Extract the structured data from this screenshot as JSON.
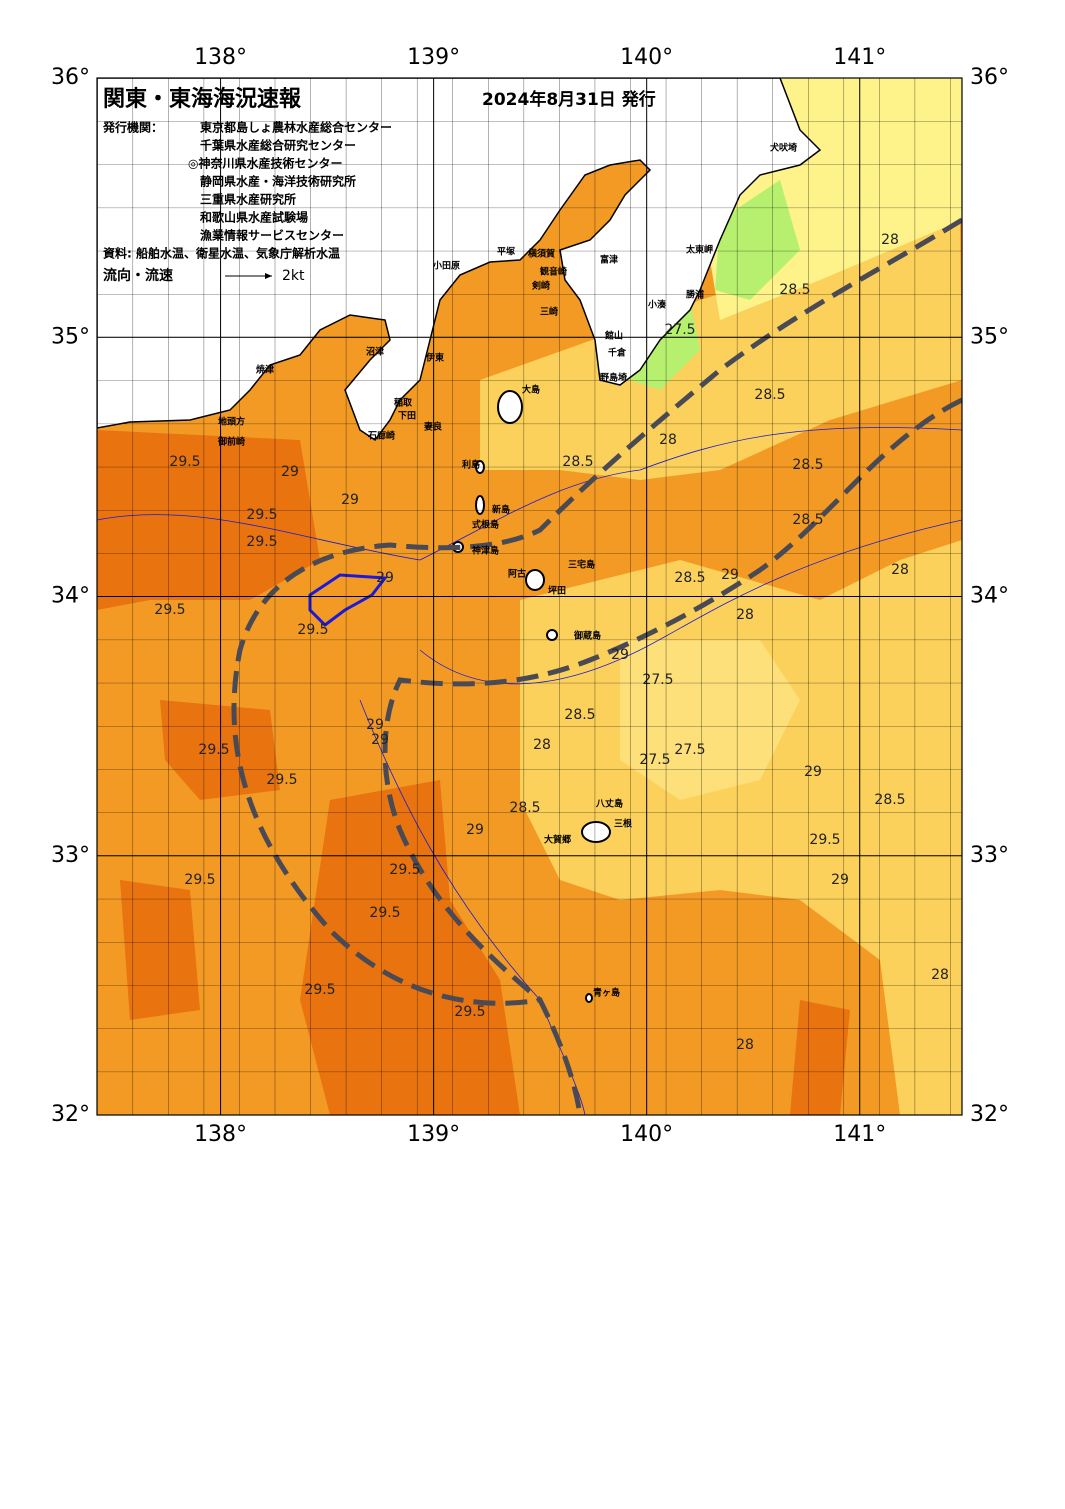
{
  "header": {
    "title": "関東・東海海況速報",
    "date": "2024年8月31日 発行",
    "issuer_label": "発行機関：",
    "issuers": [
      "東京都島しょ農林水産総合センター",
      "千葉県水産総合研究センター",
      "◎神奈川県水産技術センター",
      "静岡県水産・海洋技術研究所",
      "三重県水産研究所",
      "和歌山県水産試験場",
      "漁業情報サービスセンター"
    ],
    "source": "資料: 船舶水温、衛星水温、気象庁解析水温",
    "flow_label": "流向・流速",
    "flow_scale": "2kt"
  },
  "map": {
    "xlim": [
      137.42,
      141.48
    ],
    "ylim": [
      32,
      36
    ],
    "xticks": [
      {
        "value": 138,
        "label": "138°"
      },
      {
        "value": 139,
        "label": "139°"
      },
      {
        "value": 140,
        "label": "140°"
      },
      {
        "value": 141,
        "label": "141°"
      }
    ],
    "yticks": [
      {
        "value": 32,
        "label": "32°"
      },
      {
        "value": 33,
        "label": "33°"
      },
      {
        "value": 34,
        "label": "34°"
      },
      {
        "value": 35,
        "label": "35°"
      },
      {
        "value": 36,
        "label": "36°"
      }
    ]
  },
  "places": [
    "犬吠埼",
    "太東岬",
    "勝浦",
    "小湊",
    "館山",
    "千倉",
    "野島埼",
    "小田原",
    "平塚",
    "横須賀",
    "観音崎",
    "富津",
    "剣崎",
    "三崎",
    "沼津",
    "伊東",
    "焼津",
    "御前崎",
    "地頭方",
    "稲取",
    "下田",
    "石廊崎",
    "妻良",
    "大島",
    "利島",
    "新島",
    "式根島",
    "神津島",
    "三宅島",
    "阿古",
    "坪田",
    "御蔵島",
    "八丈島",
    "三根",
    "大賀郷",
    "青ヶ島"
  ],
  "contour_labels": [
    "29.5",
    "29",
    "29.5",
    "29.5",
    "29.5",
    "29",
    "29.5",
    "29",
    "28.5",
    "28",
    "27.5",
    "28.5",
    "28.5",
    "28",
    "28.5",
    "28.5",
    "28",
    "27.5",
    "27.5",
    "28",
    "29",
    "28.5",
    "28.5",
    "29",
    "29.5",
    "29.5",
    "29.5",
    "29.5",
    "29.5",
    "29.5",
    "29.5",
    "29",
    "28.5",
    "28",
    "28",
    "29",
    "28.5",
    "29",
    "29.5",
    "28",
    "29",
    "27.5",
    "29"
  ]
}
